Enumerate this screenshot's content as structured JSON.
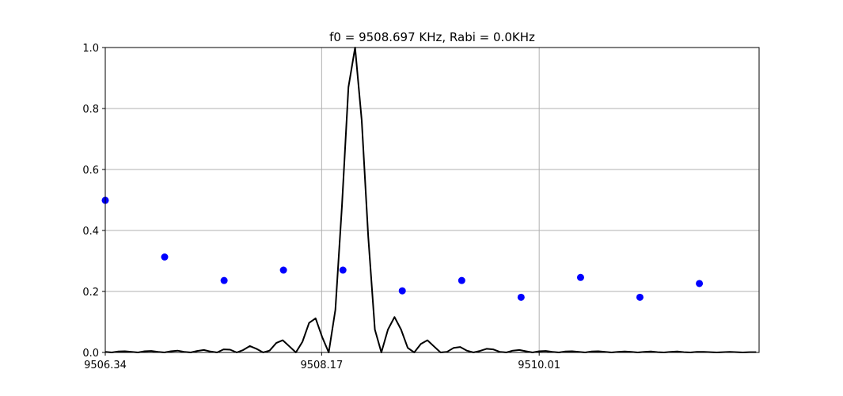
{
  "chart_data": {
    "type": "line",
    "title": "f0 = 9508.697 KHz, Rabi = 0.0KHz",
    "xlabel": "",
    "ylabel": "",
    "xlim": [
      9506.34,
      9511.87
    ],
    "ylim": [
      0,
      1.0
    ],
    "xticks": [
      9506.34,
      9508.17,
      9510.01
    ],
    "xtick_labels": [
      "9506.34",
      "9508.17",
      "9510.01"
    ],
    "yticks": [
      0.0,
      0.2,
      0.4,
      0.6,
      0.8,
      1.0
    ],
    "ytick_labels": [
      "0.0",
      "0.2",
      "0.4",
      "0.6",
      "0.8",
      "1.0"
    ],
    "grid": true,
    "colors": {
      "line": "#000000",
      "points": "#0000ff",
      "grid": "#b0b0b0"
    },
    "series": [
      {
        "kind": "line",
        "x": [
          9506.34,
          9506.395,
          9506.451,
          9506.506,
          9506.562,
          9506.617,
          9506.673,
          9506.729,
          9506.785,
          9506.84,
          9506.896,
          9506.951,
          9507.007,
          9507.063,
          9507.118,
          9507.174,
          9507.229,
          9507.285,
          9507.341,
          9507.396,
          9507.452,
          9507.507,
          9507.563,
          9507.619,
          9507.675,
          9507.73,
          9507.786,
          9507.841,
          9507.897,
          9507.952,
          9508.008,
          9508.064,
          9508.119,
          9508.175,
          9508.23,
          9508.286,
          9508.342,
          9508.397,
          9508.453,
          9508.509,
          9508.564,
          9508.62,
          9508.675,
          9508.731,
          9508.786,
          9508.842,
          9508.898,
          9508.953,
          9509.009,
          9509.065,
          9509.12,
          9509.176,
          9509.231,
          9509.287,
          9509.342,
          9509.398,
          9509.454,
          9509.509,
          9509.565,
          9509.62,
          9509.676,
          9509.732,
          9509.787,
          9509.843,
          9509.898,
          9509.954,
          9510.01,
          9510.066,
          9510.121,
          9510.177,
          9510.232,
          9510.288,
          9510.344,
          9510.399,
          9510.455,
          9510.51,
          9510.566,
          9510.622,
          9510.677,
          9510.733,
          9510.788,
          9510.844,
          9510.9,
          9510.955,
          9511.011,
          9511.066,
          9511.122,
          9511.178,
          9511.233,
          9511.289,
          9511.344,
          9511.4,
          9511.456,
          9511.511,
          9511.567,
          9511.622,
          9511.678,
          9511.733,
          9511.789,
          9511.845
        ],
        "y": [
          0.002,
          0.0,
          0.003,
          0.004,
          0.002,
          0.0,
          0.004,
          0.005,
          0.002,
          0.0,
          0.004,
          0.006,
          0.002,
          0.0,
          0.005,
          0.008,
          0.003,
          0.0,
          0.01,
          0.009,
          0.0,
          0.008,
          0.021,
          0.012,
          0.0,
          0.006,
          0.031,
          0.04,
          0.02,
          0.0,
          0.035,
          0.097,
          0.112,
          0.05,
          0.0,
          0.14,
          0.48,
          0.87,
          1.0,
          0.76,
          0.38,
          0.075,
          0.0,
          0.075,
          0.116,
          0.075,
          0.015,
          0.0,
          0.028,
          0.04,
          0.02,
          0.0,
          0.002,
          0.015,
          0.018,
          0.006,
          0.0,
          0.005,
          0.012,
          0.01,
          0.002,
          0.0,
          0.006,
          0.008,
          0.004,
          0.0,
          0.004,
          0.005,
          0.002,
          0.0,
          0.003,
          0.004,
          0.002,
          0.0,
          0.003,
          0.004,
          0.002,
          0.0,
          0.002,
          0.003,
          0.002,
          0.0,
          0.002,
          0.003,
          0.001,
          0.0,
          0.002,
          0.003,
          0.001,
          0.0,
          0.002,
          0.002,
          0.001,
          0.0,
          0.001,
          0.002,
          0.001,
          0.0,
          0.001,
          0.001
        ]
      },
      {
        "kind": "scatter",
        "x": [
          9506.34,
          9506.842,
          9507.345,
          9507.847,
          9508.35,
          9508.852,
          9509.355,
          9509.857,
          9510.36,
          9510.862,
          9511.365
        ],
        "y": [
          0.499,
          0.313,
          0.236,
          0.27,
          0.27,
          0.202,
          0.236,
          0.181,
          0.246,
          0.181,
          0.226
        ]
      }
    ]
  }
}
